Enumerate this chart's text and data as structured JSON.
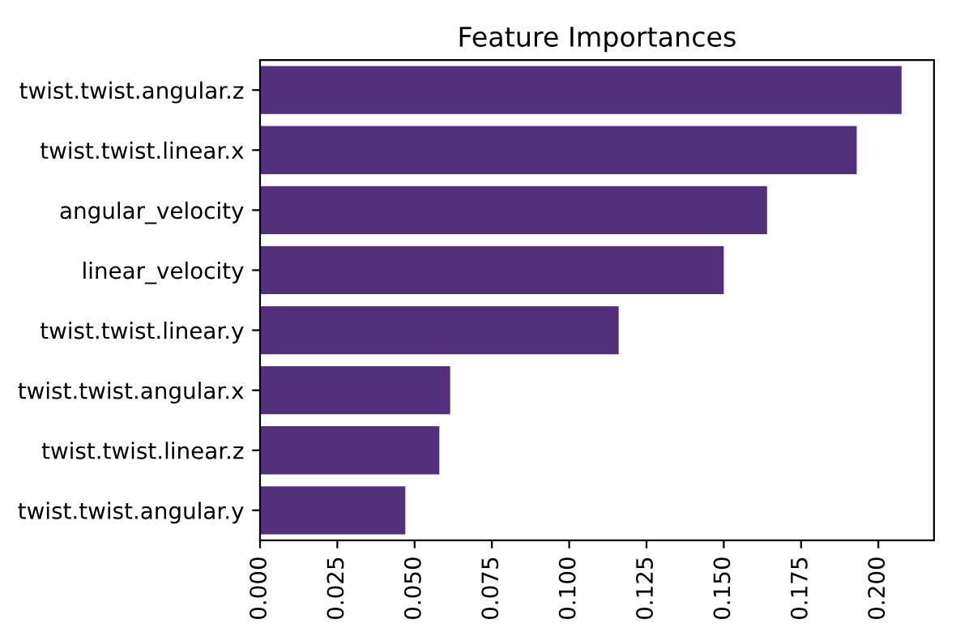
{
  "chart_data": {
    "type": "bar",
    "orientation": "horizontal",
    "title": "Feature Importances",
    "categories": [
      "twist.twist.angular.z",
      "twist.twist.linear.x",
      "angular_velocity",
      "linear_velocity",
      "twist.twist.linear.y",
      "twist.twist.angular.x",
      "twist.twist.linear.z",
      "twist.twist.angular.y"
    ],
    "values": [
      0.2075,
      0.193,
      0.164,
      0.15,
      0.116,
      0.0615,
      0.058,
      0.047
    ],
    "color": "#52307c",
    "xlim": [
      0,
      0.218
    ],
    "xticks": [
      {
        "value": 0,
        "label": "0.000"
      },
      {
        "value": 0.025,
        "label": "0.025"
      },
      {
        "value": 0.05,
        "label": "0.050"
      },
      {
        "value": 0.075,
        "label": "0.075"
      },
      {
        "value": 0.1,
        "label": "0.100"
      },
      {
        "value": 0.125,
        "label": "0.125"
      },
      {
        "value": 0.15,
        "label": "0.150"
      },
      {
        "value": 0.175,
        "label": "0.175"
      },
      {
        "value": 0.2,
        "label": "0.200"
      }
    ],
    "grid": false
  }
}
